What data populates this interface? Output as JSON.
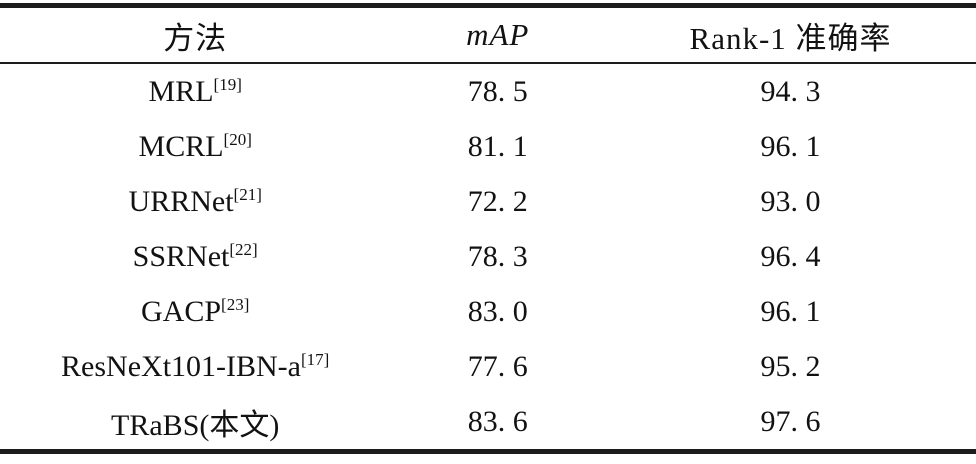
{
  "table": {
    "headers": {
      "method": "方法",
      "map": "mAP",
      "rank1": "Rank-1 准确率"
    },
    "rows": [
      {
        "method": "MRL",
        "ref": "[19]",
        "map": "78. 5",
        "rank1": "94. 3"
      },
      {
        "method": "MCRL",
        "ref": "[20]",
        "map": "81. 1",
        "rank1": "96. 1"
      },
      {
        "method": "URRNet",
        "ref": "[21]",
        "map": "72. 2",
        "rank1": "93. 0"
      },
      {
        "method": "SSRNet",
        "ref": "[22]",
        "map": "78. 3",
        "rank1": "96. 4"
      },
      {
        "method": "GACP",
        "ref": "[23]",
        "map": "83. 0",
        "rank1": "96. 1"
      },
      {
        "method": "ResNeXt101-IBN-a",
        "ref": "[17]",
        "map": "77. 6",
        "rank1": "95. 2"
      },
      {
        "method": "TRaBS(本文)",
        "ref": "",
        "map": "83. 6",
        "rank1": "97. 6"
      }
    ],
    "colors": {
      "text": "#121212",
      "rule": "#1c1c1c",
      "background": "#ffffff"
    }
  },
  "chart_data": {
    "type": "table",
    "title": "",
    "columns": [
      "方法",
      "mAP",
      "Rank-1 准确率"
    ],
    "rows_text": [
      [
        "MRL[19]",
        78.5,
        94.3
      ],
      [
        "MCRL[20]",
        81.1,
        96.1
      ],
      [
        "URRNet[21]",
        72.2,
        93.0
      ],
      [
        "SSRNet[22]",
        78.3,
        96.4
      ],
      [
        "GACP[23]",
        83.0,
        96.1
      ],
      [
        "ResNeXt101-IBN-a[17]",
        77.6,
        95.2
      ],
      [
        "TRaBS(本文)",
        83.6,
        97.6
      ]
    ]
  }
}
